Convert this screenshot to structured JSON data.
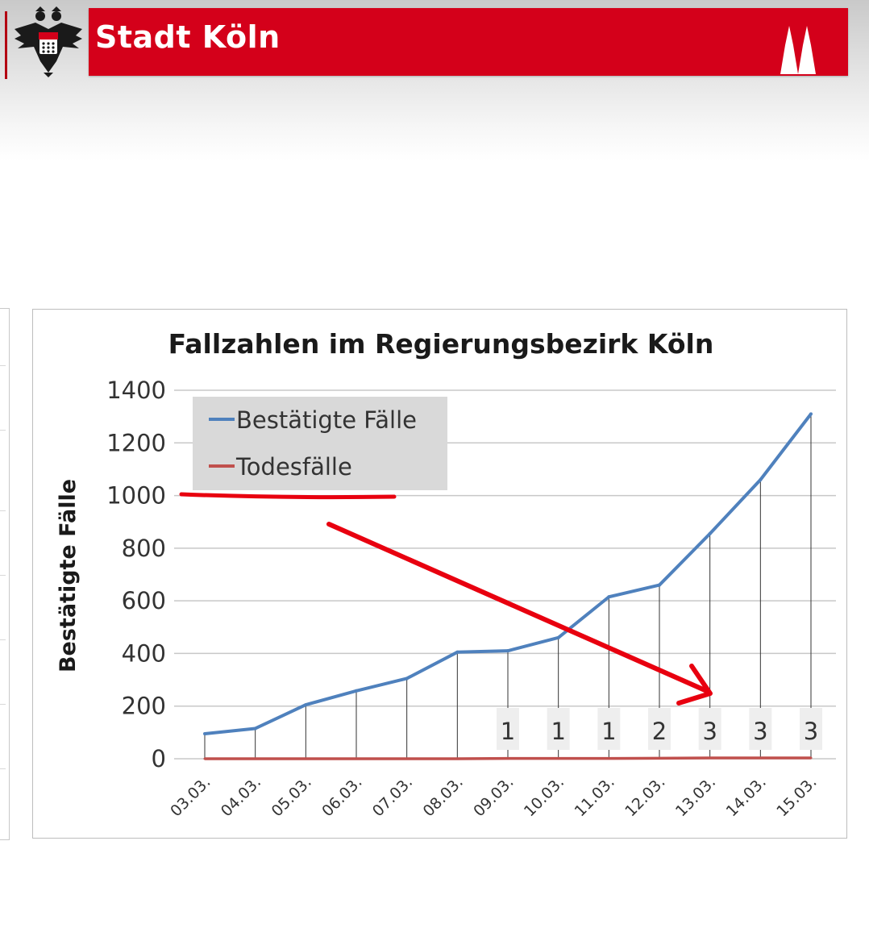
{
  "header": {
    "title": "Stadt Köln",
    "brand_color": "#d4001a"
  },
  "icons": {
    "crest": "eagle-crest-icon",
    "spires": "cathedral-spires-icon"
  },
  "annotations": {
    "arrow_color": "#e8000f",
    "underline_color": "#e8000f"
  },
  "chart_data": {
    "type": "line",
    "title": "Fallzahlen im Regierungsbezirk Köln",
    "ylabel": "Bestätigte Fälle",
    "xlabel": "",
    "ylim": [
      0,
      1400
    ],
    "yticks": [
      "0",
      "200",
      "400",
      "600",
      "800",
      "1000",
      "1200",
      "1400"
    ],
    "grid": true,
    "legend_position": "top-left",
    "categories": [
      "03.03.",
      "04.03.",
      "05.03.",
      "06.03.",
      "07.03.",
      "08.03.",
      "09.03.",
      "10.03.",
      "11.03.",
      "12.03.",
      "13.03.",
      "14.03.",
      "15.03."
    ],
    "series": [
      {
        "name": "Bestätigte Fälle",
        "color": "#4f81bd",
        "values": [
          95,
          115,
          205,
          258,
          305,
          405,
          410,
          460,
          615,
          660,
          855,
          1060,
          1310
        ]
      },
      {
        "name": "Todesfälle",
        "color": "#c0504d",
        "values": [
          0,
          0,
          0,
          0,
          0,
          0,
          1,
          1,
          1,
          2,
          3,
          3,
          3
        ],
        "data_labels": [
          "",
          "",
          "",
          "",
          "",
          "",
          "1",
          "1",
          "1",
          "2",
          "3",
          "3",
          "3"
        ]
      }
    ]
  }
}
